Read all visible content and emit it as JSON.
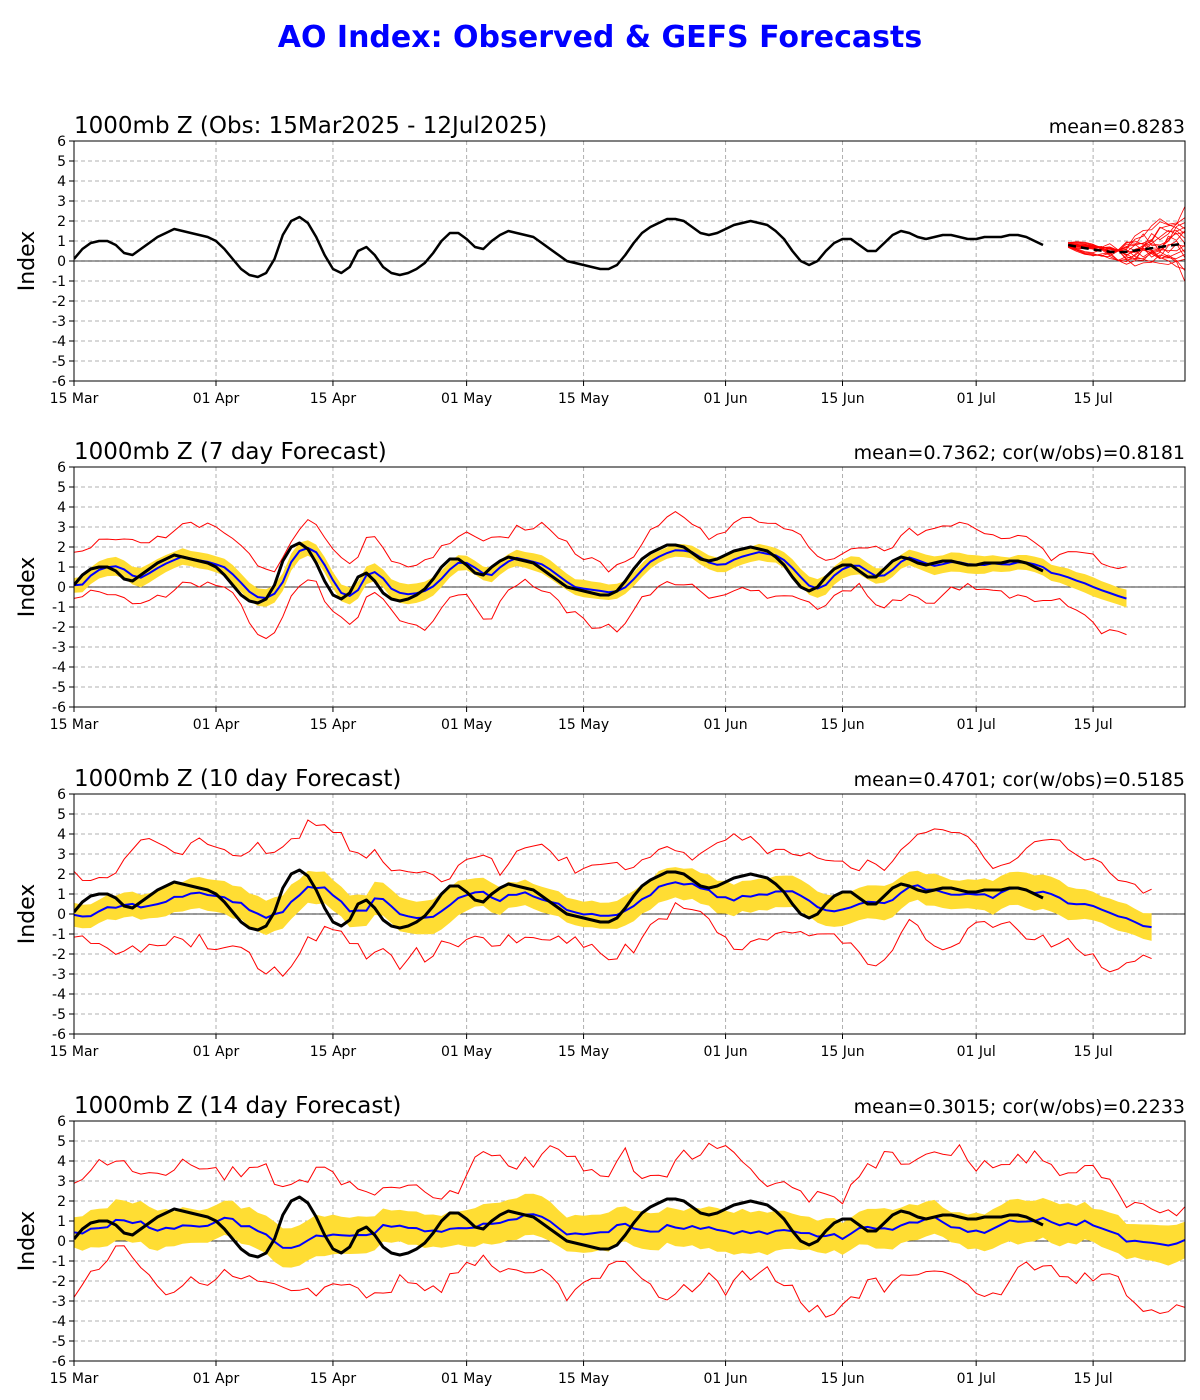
{
  "title": "AO Index: Observed & GEFS Forecasts",
  "colors": {
    "title": "#0000ff",
    "observed": "#000000",
    "ensemble_mean": "#0000ff",
    "spread": "#ffdd33",
    "extremes": "#ff0000",
    "members": "#ff0000",
    "grid": "#b0b0b0"
  },
  "chart_data": [
    {
      "type": "line",
      "panel_title": "1000mb Z (Obs: 15Mar2025 - 12Jul2025)",
      "stat": "mean=0.8283",
      "ylabel": "Index",
      "ylim": [
        -6,
        6
      ],
      "yticks": [
        "6",
        "5",
        "4",
        "3",
        "2",
        "1",
        "0",
        "-1",
        "-2",
        "-3",
        "-4",
        "-5",
        "-6"
      ],
      "xticks": [
        "15 Mar",
        "01 Apr",
        "15 Apr",
        "01 May",
        "15 May",
        "01 Jun",
        "15 Jun",
        "01 Jul",
        "15 Jul"
      ],
      "xrange": [
        "2025-03-15",
        "2025-07-26"
      ],
      "grid": true,
      "observed": {
        "start": "2025-03-15",
        "values": [
          0.1,
          0.6,
          0.9,
          1.0,
          1.0,
          0.8,
          0.4,
          0.3,
          0.6,
          0.9,
          1.2,
          1.4,
          1.6,
          1.5,
          1.4,
          1.3,
          1.2,
          1.0,
          0.6,
          0.1,
          -0.4,
          -0.7,
          -0.8,
          -0.6,
          0.1,
          1.3,
          2.0,
          2.2,
          1.9,
          1.2,
          0.3,
          -0.4,
          -0.6,
          -0.3,
          0.5,
          0.7,
          0.3,
          -0.3,
          -0.6,
          -0.7,
          -0.6,
          -0.4,
          -0.1,
          0.4,
          1.0,
          1.4,
          1.4,
          1.1,
          0.7,
          0.6,
          1.0,
          1.3,
          1.5,
          1.4,
          1.3,
          1.2,
          0.9,
          0.6,
          0.3,
          0.0,
          -0.1,
          -0.2,
          -0.3,
          -0.4,
          -0.4,
          -0.2,
          0.3,
          0.9,
          1.4,
          1.7,
          1.9,
          2.1,
          2.1,
          2.0,
          1.7,
          1.4,
          1.3,
          1.4,
          1.6,
          1.8,
          1.9,
          2.0,
          1.9,
          1.8,
          1.5,
          1.1,
          0.5,
          0.0,
          -0.2,
          0.0,
          0.5,
          0.9,
          1.1,
          1.1,
          0.8,
          0.5,
          0.5,
          0.9,
          1.3,
          1.5,
          1.4,
          1.2,
          1.1,
          1.2,
          1.3,
          1.3,
          1.2,
          1.1,
          1.1,
          1.2,
          1.2,
          1.2,
          1.3,
          1.3,
          1.2,
          1.0,
          0.8
        ]
      },
      "members": {
        "start": "2025-07-12",
        "count": 20
      }
    },
    {
      "type": "line",
      "panel_title": "1000mb Z (7 day Forecast)",
      "stat": "mean=0.7362; cor(w/obs)=0.8181",
      "ylabel": "Index",
      "ylim": [
        -6,
        6
      ],
      "yticks": [
        "6",
        "5",
        "4",
        "3",
        "2",
        "1",
        "0",
        "-1",
        "-2",
        "-3",
        "-4",
        "-5",
        "-6"
      ],
      "xticks": [
        "15 Mar",
        "01 Apr",
        "15 Apr",
        "01 May",
        "15 May",
        "01 Jun",
        "15 Jun",
        "01 Jul",
        "15 Jul"
      ],
      "xrange": [
        "2025-03-15",
        "2025-07-26"
      ],
      "grid": true,
      "forecast_end": "2025-07-19",
      "lead_days": 7,
      "spread_width": 0.6,
      "extreme_width": 1.5
    },
    {
      "type": "line",
      "panel_title": "1000mb Z (10 day Forecast)",
      "stat": "mean=0.4701; cor(w/obs)=0.5185",
      "ylabel": "Index",
      "ylim": [
        -6,
        6
      ],
      "yticks": [
        "6",
        "5",
        "4",
        "3",
        "2",
        "1",
        "0",
        "-1",
        "-2",
        "-3",
        "-4",
        "-5",
        "-6"
      ],
      "xticks": [
        "15 Mar",
        "01 Apr",
        "15 Apr",
        "01 May",
        "15 May",
        "01 Jun",
        "15 Jun",
        "01 Jul",
        "15 Jul"
      ],
      "xrange": [
        "2025-03-15",
        "2025-07-26"
      ],
      "grid": true,
      "forecast_end": "2025-07-22",
      "lead_days": 10,
      "spread_width": 1.0,
      "extreme_width": 2.2
    },
    {
      "type": "line",
      "panel_title": "1000mb Z (14 day Forecast)",
      "stat": "mean=0.3015; cor(w/obs)=0.2233",
      "ylabel": "Index",
      "ylim": [
        -6,
        6
      ],
      "yticks": [
        "6",
        "5",
        "4",
        "3",
        "2",
        "1",
        "0",
        "-1",
        "-2",
        "-3",
        "-4",
        "-5",
        "-6"
      ],
      "xticks": [
        "15 Mar",
        "01 Apr",
        "15 Apr",
        "01 May",
        "15 May",
        "01 Jun",
        "15 Jun",
        "01 Jul",
        "15 Jul"
      ],
      "xrange": [
        "2025-03-15",
        "2025-07-26"
      ],
      "grid": true,
      "forecast_end": "2025-07-26",
      "lead_days": 14,
      "spread_width": 1.3,
      "extreme_width": 2.8
    }
  ]
}
